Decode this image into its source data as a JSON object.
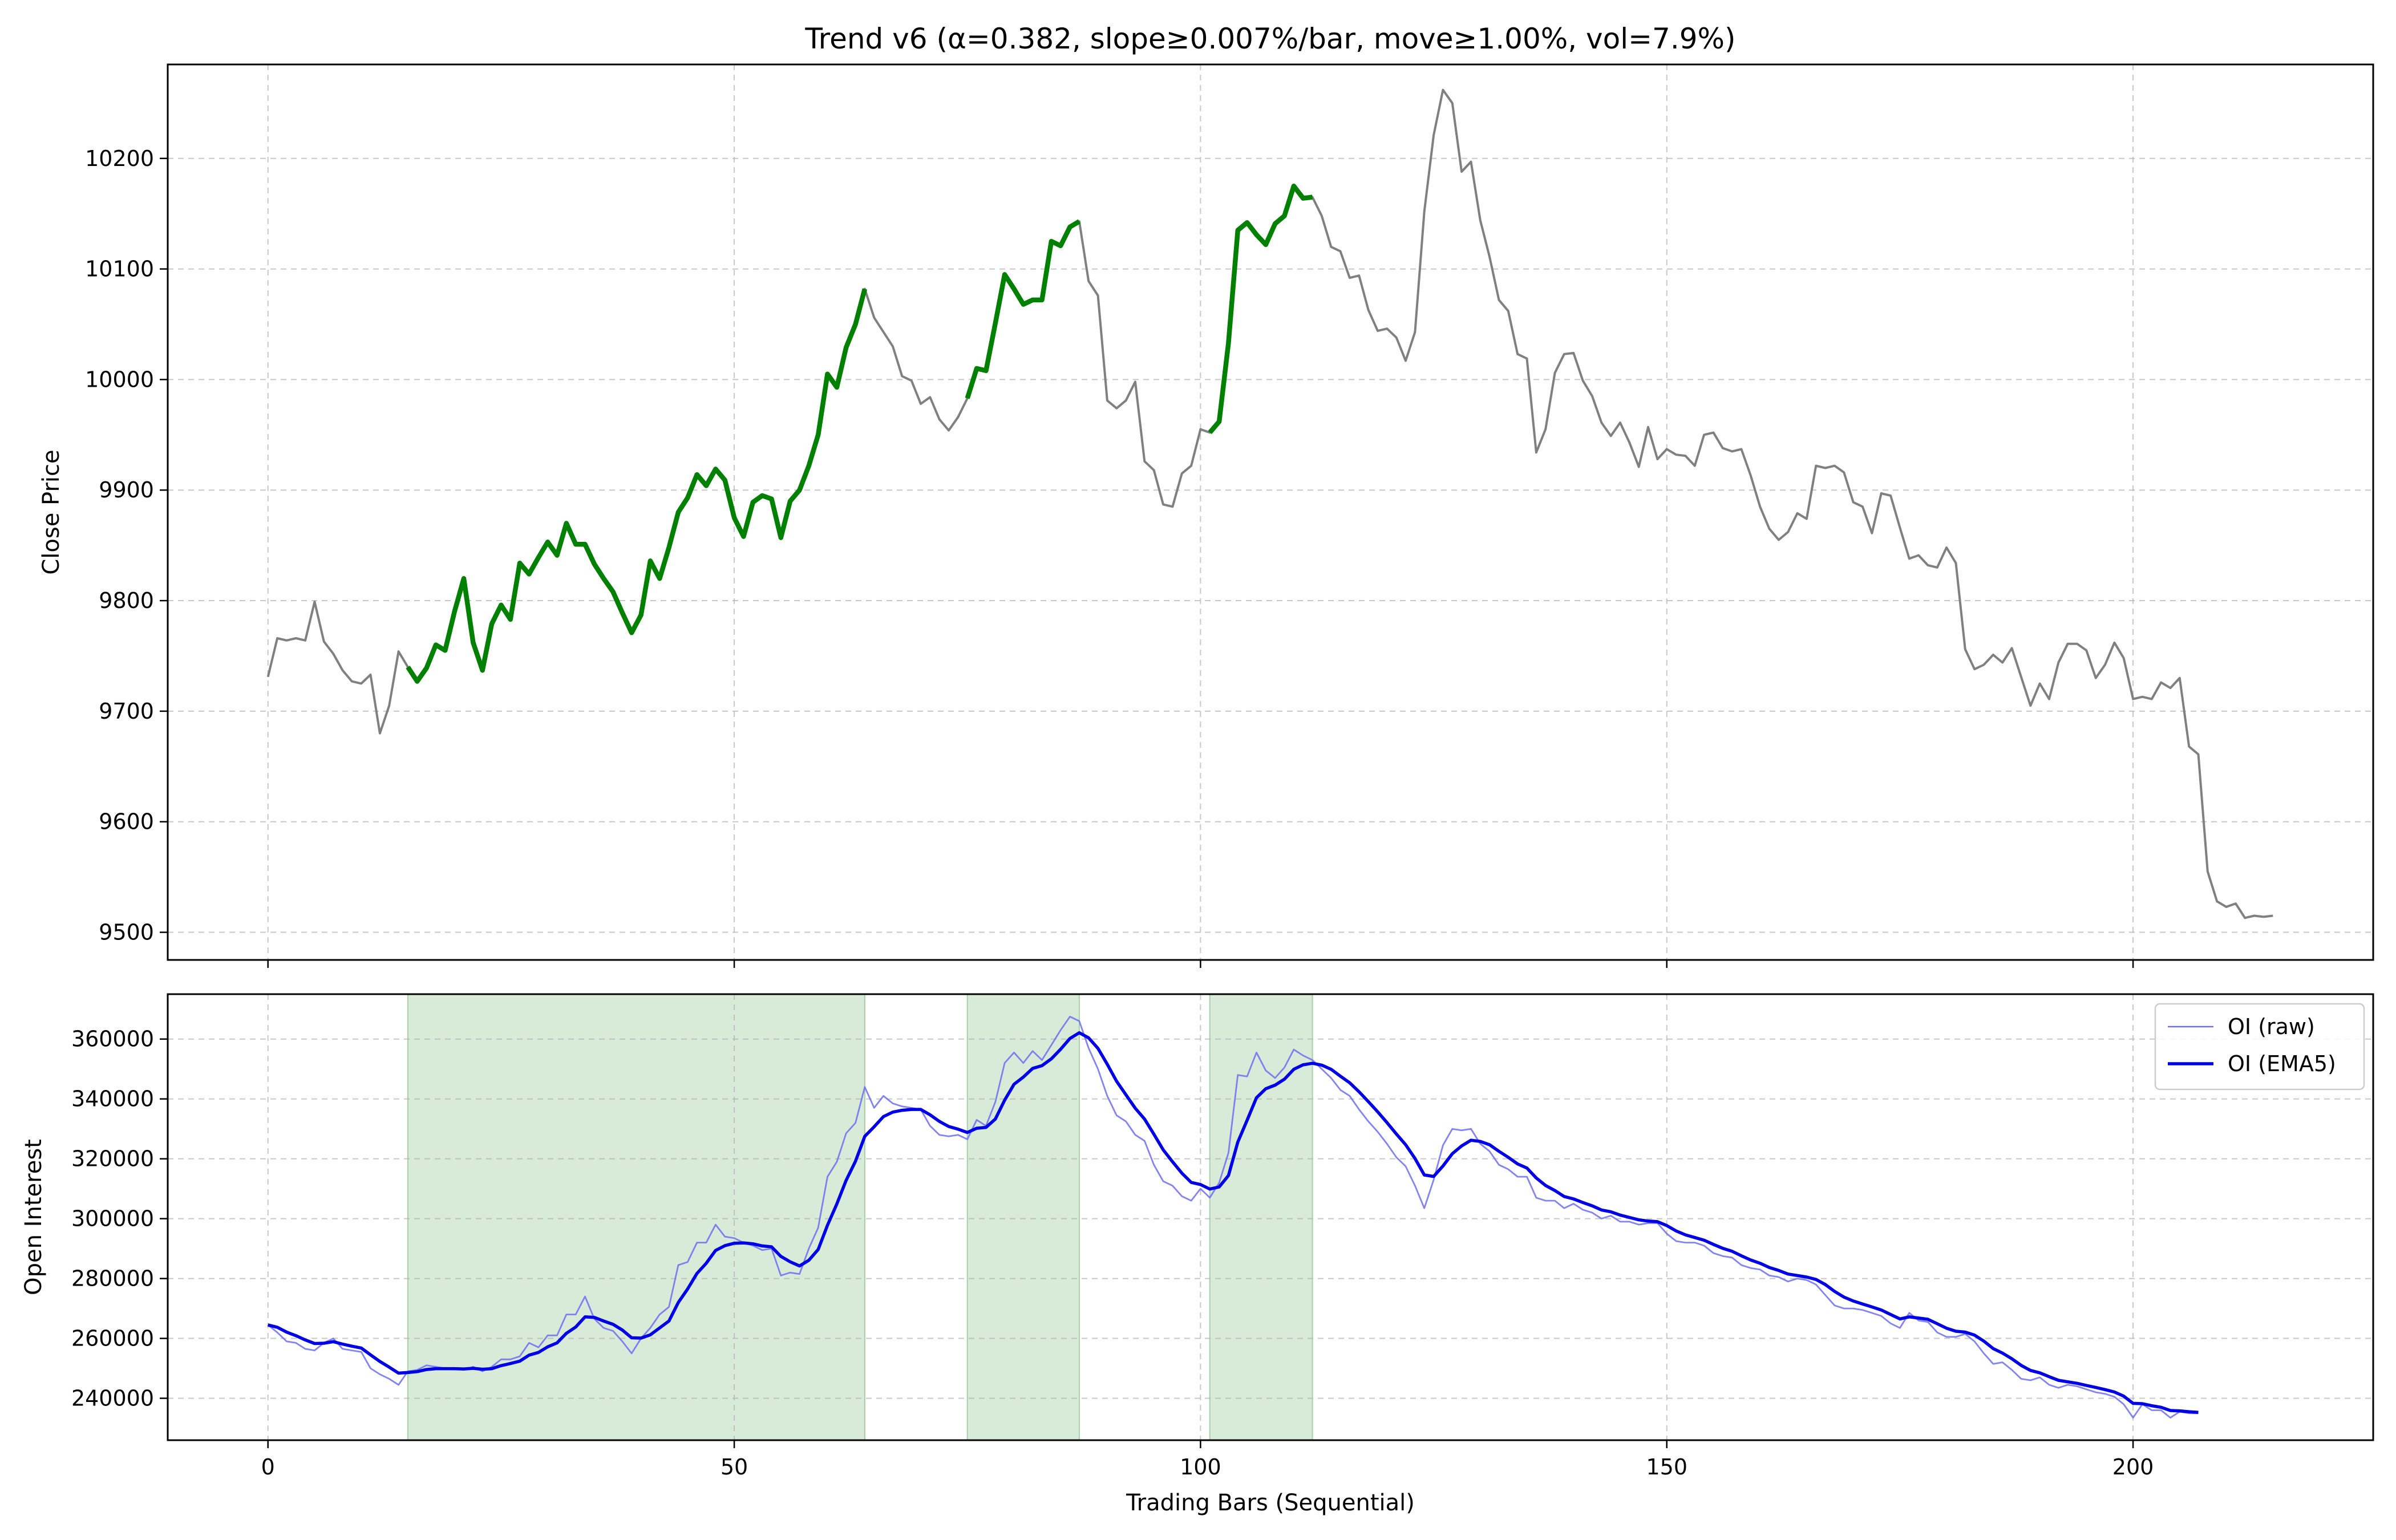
{
  "figure": {
    "title": "Trend v6 (α=0.382, slope≥0.007%/bar, move≥1.00%, vol=7.9%)"
  },
  "chart_data": [
    {
      "type": "line",
      "id": "price",
      "xlabel": "",
      "ylabel": "Close Price",
      "xlim": [
        -10.75,
        225.75
      ],
      "ylim": [
        9475,
        10285
      ],
      "x_ticks": [
        0,
        50,
        100,
        150,
        200
      ],
      "y_ticks": [
        9500,
        9600,
        9700,
        9800,
        9900,
        10000,
        10100,
        10200
      ],
      "y_tick_labels": [
        "9500",
        "9600",
        "9700",
        "9800",
        "9900",
        "10000",
        "10100",
        "10200"
      ],
      "grid": true,
      "colors": {
        "price": "#808080",
        "trend": "#008000"
      },
      "trend_segments": [
        [
          15,
          64
        ],
        [
          75,
          87
        ],
        [
          101,
          112
        ]
      ],
      "series": [
        {
          "values": [
            9731,
            9766,
            9764,
            9766,
            9764,
            9799,
            9763,
            9752,
            9737,
            9727,
            9725,
            9733,
            9680,
            9705,
            9754,
            9740,
            9727,
            9739,
            9760,
            9755,
            9790,
            9820,
            9762,
            9737,
            9779,
            9796,
            9783,
            9834,
            9824,
            9839,
            9853,
            9841,
            9870,
            9851,
            9851,
            9833,
            9820,
            9808,
            9789,
            9771,
            9787,
            9836,
            9820,
            9848,
            9880,
            9893,
            9914,
            9904,
            9919,
            9909,
            9875,
            9858,
            9889,
            9895,
            9892,
            9857,
            9890,
            9900,
            9922,
            9950,
            10005,
            9993,
            10029,
            10050,
            10082,
            10056,
            10043,
            10030,
            10003,
            9999,
            9978,
            9984,
            9964,
            9954,
            9966,
            9983,
            10010,
            10008,
            10051,
            10095,
            10082,
            10068,
            10072,
            10072,
            10125,
            10121,
            10138,
            10143,
            10089,
            10076,
            9981,
            9974,
            9981,
            9998,
            9926,
            9918,
            9887,
            9885,
            9915,
            9922,
            9955,
            9952,
            9962,
            10033,
            10135,
            10142,
            10131,
            10122,
            10141,
            10148,
            10175,
            10164,
            10165,
            10148,
            10120,
            10116,
            10092,
            10094,
            10063,
            10044,
            10046,
            10038,
            10017,
            10043,
            10152,
            10221,
            10262,
            10250,
            10188,
            10197,
            10144,
            10111,
            10072,
            10062,
            10023,
            10019,
            9934,
            9955,
            10006,
            10023,
            10024,
            9999,
            9985,
            9961,
            9949,
            9961,
            9943,
            9921,
            9957,
            9928,
            9937,
            9932,
            9931,
            9922,
            9950,
            9952,
            9938,
            9935,
            9937,
            9913,
            9885,
            9865,
            9855,
            9862,
            9879,
            9874,
            9922,
            9920,
            9922,
            9916,
            9889,
            9885,
            9861,
            9897,
            9895,
            9866,
            9838,
            9841,
            9832,
            9830,
            9848,
            9834,
            9756,
            9738,
            9742,
            9751,
            9744,
            9757,
            9731,
            9705,
            9725,
            9711,
            9744,
            9761,
            9761,
            9755,
            9730,
            9742,
            9762,
            9748,
            9711,
            9713,
            9711,
            9726,
            9721,
            9730,
            9668,
            9661,
            9555,
            9528,
            9523,
            9526,
            9513,
            9515,
            9514,
            9515
          ]
        }
      ]
    },
    {
      "type": "line",
      "id": "oi",
      "xlabel": "Trading Bars (Sequential)",
      "ylabel": "Open Interest",
      "xlim": [
        -10.75,
        225.75
      ],
      "ylim": [
        226000,
        375000
      ],
      "x_ticks": [
        0,
        50,
        100,
        150,
        200
      ],
      "x_tick_labels": [
        "0",
        "50",
        "100",
        "150",
        "200"
      ],
      "y_ticks": [
        240000,
        260000,
        280000,
        300000,
        320000,
        340000,
        360000
      ],
      "y_tick_labels": [
        "240000",
        "260000",
        "280000",
        "300000",
        "320000",
        "340000",
        "360000"
      ],
      "grid": true,
      "legend": "top-right",
      "shaded_spans": [
        [
          15,
          64
        ],
        [
          75,
          87
        ],
        [
          101,
          112
        ]
      ],
      "colors": {
        "shade": "#d8ebd8",
        "raw": "#6d6df2",
        "ema": "#0000e6"
      },
      "series": [
        {
          "name": "OI (raw)",
          "values": [
            264500,
            262000,
            259000,
            258500,
            256500,
            256000,
            258500,
            260000,
            256500,
            256000,
            255500,
            250000,
            248000,
            246500,
            244500,
            249000,
            249500,
            251000,
            250500,
            250000,
            250000,
            249500,
            250500,
            249000,
            250500,
            253000,
            253000,
            254000,
            258500,
            257000,
            261000,
            261000,
            268000,
            268000,
            274000,
            266500,
            263500,
            262500,
            259000,
            255000,
            260000,
            263500,
            268000,
            270500,
            284500,
            285500,
            292000,
            292000,
            298000,
            294000,
            293500,
            292000,
            291000,
            289500,
            290000,
            281000,
            282000,
            281500,
            290000,
            297000,
            314000,
            319000,
            328500,
            332000,
            344000,
            337000,
            341000,
            338500,
            337500,
            337000,
            336500,
            331000,
            328000,
            327500,
            328000,
            326500,
            333000,
            331000,
            339000,
            352000,
            355500,
            352000,
            356000,
            353000,
            358000,
            363000,
            367500,
            366000,
            357000,
            350000,
            341000,
            334500,
            332500,
            328000,
            326000,
            318000,
            312500,
            311000,
            307500,
            306000,
            310000,
            307000,
            312000,
            322000,
            348000,
            347500,
            355500,
            349500,
            347000,
            350500,
            356500,
            354500,
            353000,
            350000,
            347000,
            343000,
            341000,
            336500,
            332500,
            329000,
            325000,
            320500,
            317500,
            311000,
            303500,
            313000,
            324500,
            330000,
            329500,
            330000,
            325000,
            322500,
            318000,
            316500,
            314000,
            314000,
            307000,
            306000,
            306000,
            303500,
            305000,
            303000,
            302000,
            300000,
            301000,
            299000,
            299000,
            298000,
            298500,
            298500,
            295000,
            292500,
            292000,
            292000,
            291000,
            288500,
            287500,
            287000,
            284500,
            283500,
            283000,
            281000,
            280500,
            279000,
            280000,
            279500,
            278000,
            274500,
            271000,
            270000,
            270000,
            269500,
            268500,
            267500,
            265000,
            263500,
            268500,
            266000,
            265500,
            262000,
            260500,
            260500,
            261500,
            259000,
            255000,
            251500,
            252000,
            249500,
            246500,
            246000,
            247000,
            244500,
            243500,
            244500,
            244000,
            243000,
            242000,
            241500,
            240500,
            238000,
            233500,
            238000,
            236000,
            236000,
            233500,
            235500,
            235000,
            235000
          ]
        },
        {
          "name": "OI (EMA5)",
          "values": [
            264500,
            263700,
            262100,
            260900,
            259500,
            258300,
            258400,
            258900,
            258100,
            257400,
            256800,
            254500,
            252300,
            250400,
            248400,
            248600,
            248900,
            249600,
            249900,
            249900,
            249900,
            249800,
            250000,
            249700,
            249900,
            250900,
            251600,
            252400,
            254400,
            255300,
            257200,
            258500,
            261700,
            263800,
            267200,
            267000,
            265800,
            264700,
            262800,
            260200,
            260100,
            261200,
            263500,
            265800,
            272000,
            276500,
            281700,
            285100,
            289400,
            291000,
            291800,
            291900,
            291600,
            290900,
            290600,
            287400,
            285600,
            284200,
            286100,
            289700,
            297800,
            304900,
            312800,
            319200,
            327500,
            330700,
            334100,
            335600,
            336200,
            336500,
            336500,
            334700,
            332500,
            330800,
            329900,
            328800,
            330200,
            330500,
            333300,
            339600,
            344900,
            347300,
            350200,
            351100,
            353400,
            356600,
            360200,
            362100,
            360400,
            356900,
            351600,
            345900,
            341400,
            336900,
            333300,
            328200,
            323000,
            319000,
            315200,
            312100,
            311400,
            309900,
            310600,
            314400,
            325600,
            332900,
            340400,
            343400,
            344600,
            346600,
            349900,
            351400,
            351900,
            351300,
            349900,
            347600,
            345400,
            342400,
            339100,
            335700,
            332100,
            328300,
            324700,
            320100,
            314600,
            314100,
            317600,
            321700,
            324300,
            326200,
            325800,
            324700,
            322500,
            320500,
            318300,
            316900,
            313600,
            311100,
            309400,
            307400,
            306600,
            305400,
            304300,
            302900,
            302300,
            301200,
            300400,
            299600,
            299200,
            299000,
            297700,
            295900,
            294600,
            293700,
            292800,
            291400,
            290100,
            289100,
            287600,
            286200,
            285100,
            283700,
            282700,
            281500,
            281000,
            280500,
            279700,
            278000,
            275700,
            273800,
            272500,
            271500,
            270500,
            269500,
            268000,
            266500,
            267200,
            266800,
            266400,
            264900,
            263400,
            262400,
            262100,
            261100,
            259100,
            256600,
            255100,
            253200,
            251000,
            249300,
            248500,
            247200,
            246000,
            245500,
            245000,
            244300,
            243600,
            242900,
            242100,
            240700,
            238300,
            238200,
            237500,
            237000,
            235900,
            235800,
            235500,
            235300
          ]
        }
      ]
    }
  ]
}
